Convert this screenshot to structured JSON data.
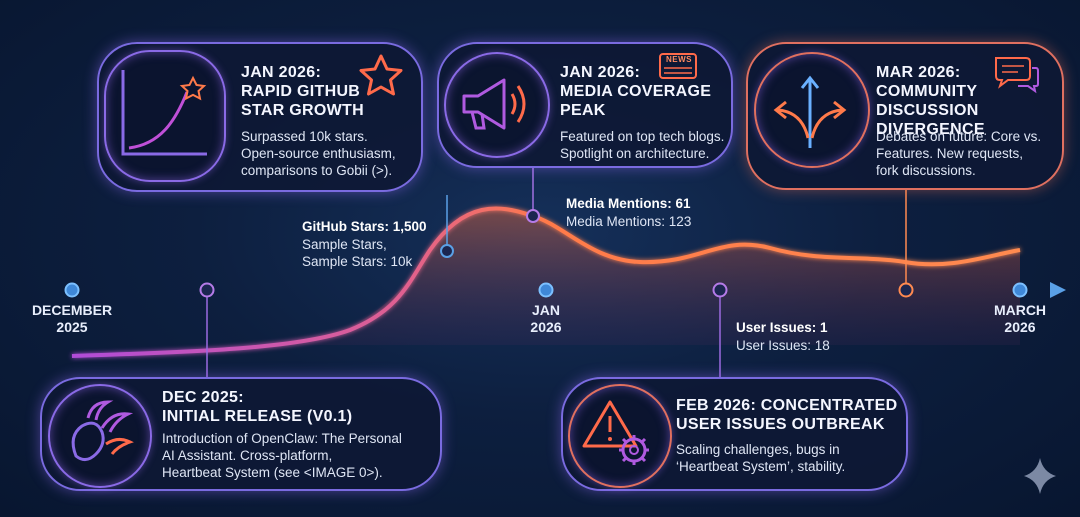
{
  "timeline": {
    "start_label": "DECEMBER\n2025",
    "mid_label": "JAN\n2026",
    "end_label": "MARCH\n2026"
  },
  "cards": {
    "github": {
      "title": "JAN 2026:\nRAPID GITHUB\nSTAR GROWTH",
      "desc": "Surpassed 10k stars.\nOpen-source enthusiasm,\ncomparisons to Gobii (>)."
    },
    "media": {
      "title": "JAN 2026:\nMEDIA COVERAGE\nPEAK",
      "desc": "Featured on top tech blogs.\nSpotlight on architecture.",
      "badge": "NEWS"
    },
    "community": {
      "title": "MAR 2026:\nCOMMUNITY\nDISCUSSION DIVERGENCE",
      "desc": "Debates on future: Core vs.\nFeatures. New requests,\nfork discussions."
    },
    "release": {
      "title": "DEC 2025:\nINITIAL RELEASE (V0.1)",
      "desc": "Introduction of OpenClaw: The Personal\nAI Assistant.  Cross-platform,\nHeartbeat System (see <IMAGE 0>)."
    },
    "issues": {
      "title": "FEB 2026: CONCENTRATED\nUSER ISSUES OUTBREAK",
      "desc": "Scaling challenges, bugs in\n‘Heartbeat System’, stability."
    }
  },
  "metrics": {
    "github_primary": "GitHub Stars: 1,500",
    "github_secondary": "Sample Stars,\nSample Stars: 10k",
    "media_primary": "Media Mentions: 61",
    "media_secondary": "Media Mentions: 123",
    "issues_primary": "User Issues: 1",
    "issues_secondary": "User Issues: 18"
  },
  "colors": {
    "axis": "#5aa0e6",
    "curve_start": "#c050d8",
    "curve_end": "#ff7a4a",
    "card_border": "#7a6be0"
  }
}
